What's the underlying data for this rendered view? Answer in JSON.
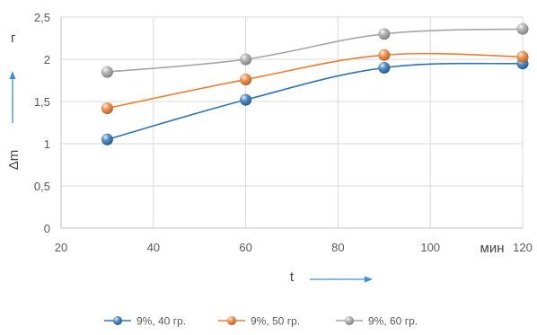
{
  "chart_data": {
    "type": "line",
    "title": "",
    "x": [
      30,
      60,
      90,
      120
    ],
    "xlim": [
      20,
      120
    ],
    "ylim": [
      0,
      2.5
    ],
    "x_ticks": [
      "20",
      "40",
      "60",
      "80",
      "100",
      "120"
    ],
    "y_ticks": [
      "0",
      "0,5",
      "1",
      "1,5",
      "2",
      "2,5"
    ],
    "xlabel": "t",
    "xunit": "мин",
    "ylabel": "Δm",
    "yunit": "г",
    "grid": true,
    "smooth": true,
    "legend_position": "bottom",
    "series": [
      {
        "name": "9%, 40 гр.",
        "color": "#2e75b6",
        "values": [
          1.05,
          1.52,
          1.9,
          1.95
        ]
      },
      {
        "name": "9%, 50 гр.",
        "color": "#ed7d31",
        "values": [
          1.42,
          1.76,
          2.05,
          2.03
        ]
      },
      {
        "name": "9%, 60 гр.",
        "color": "#a5a5a5",
        "values": [
          1.85,
          2.0,
          2.3,
          2.36
        ]
      }
    ],
    "arrow_color": "#3b8fd9"
  }
}
